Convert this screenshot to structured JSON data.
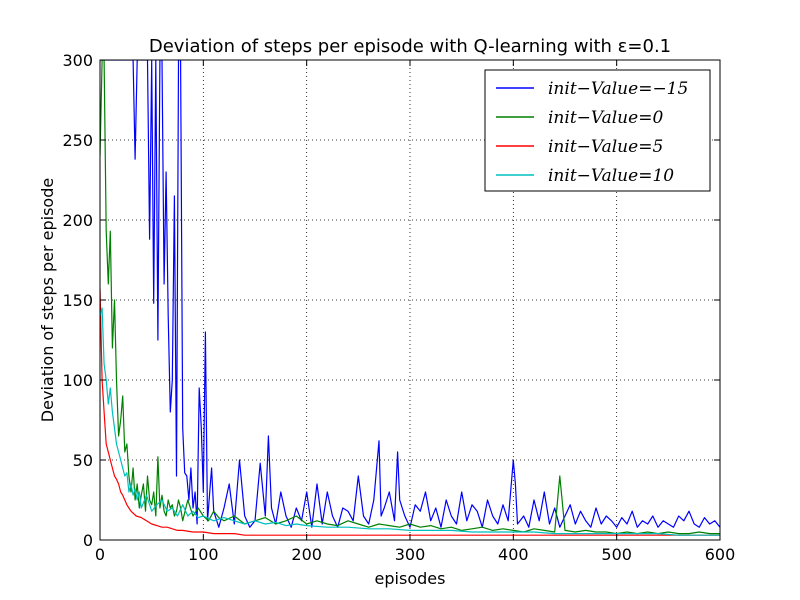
{
  "chart_data": {
    "type": "line",
    "title": "Deviation of steps per episode with Q-learning with ε=0.1",
    "xlabel": "episodes",
    "ylabel": "Deviation of steps per episode",
    "xlim": [
      0,
      600
    ],
    "ylim": [
      0,
      300
    ],
    "xticks": [
      0,
      100,
      200,
      300,
      400,
      500,
      600
    ],
    "yticks": [
      0,
      50,
      100,
      150,
      200,
      250,
      300
    ],
    "grid": true,
    "legend_position": "top-right",
    "series": [
      {
        "name": "init−Value=−15",
        "color": "#0000ff",
        "x": [
          0,
          5,
          10,
          15,
          20,
          25,
          30,
          32,
          34,
          36,
          38,
          40,
          42,
          44,
          46,
          48,
          50,
          52,
          54,
          56,
          58,
          60,
          62,
          64,
          66,
          68,
          70,
          72,
          74,
          76,
          78,
          80,
          82,
          84,
          86,
          88,
          90,
          92,
          94,
          96,
          98,
          100,
          102,
          104,
          106,
          108,
          110,
          115,
          120,
          125,
          130,
          135,
          140,
          145,
          150,
          155,
          160,
          163,
          166,
          170,
          175,
          180,
          185,
          190,
          195,
          200,
          205,
          210,
          215,
          220,
          225,
          230,
          235,
          240,
          245,
          250,
          255,
          260,
          265,
          270,
          272,
          275,
          280,
          285,
          288,
          290,
          295,
          300,
          305,
          310,
          315,
          320,
          325,
          330,
          335,
          340,
          345,
          350,
          355,
          360,
          365,
          370,
          375,
          380,
          385,
          390,
          395,
          400,
          402,
          404,
          410,
          415,
          420,
          425,
          430,
          435,
          440,
          445,
          450,
          455,
          460,
          465,
          470,
          475,
          480,
          485,
          490,
          495,
          500,
          505,
          510,
          515,
          520,
          525,
          530,
          535,
          540,
          545,
          550,
          555,
          560,
          565,
          570,
          575,
          580,
          585,
          590,
          595,
          600
        ],
        "values": [
          300,
          300,
          300,
          300,
          300,
          300,
          300,
          300,
          238,
          300,
          300,
          300,
          300,
          300,
          300,
          188,
          300,
          148,
          300,
          125,
          300,
          300,
          160,
          230,
          140,
          80,
          100,
          215,
          40,
          300,
          300,
          70,
          42,
          40,
          25,
          45,
          20,
          30,
          10,
          95,
          70,
          30,
          130,
          12,
          28,
          45,
          18,
          8,
          20,
          35,
          10,
          50,
          15,
          8,
          12,
          48,
          15,
          65,
          20,
          10,
          30,
          15,
          8,
          20,
          12,
          30,
          8,
          35,
          10,
          30,
          15,
          8,
          20,
          18,
          12,
          40,
          15,
          10,
          25,
          62,
          15,
          20,
          30,
          12,
          55,
          25,
          15,
          8,
          22,
          18,
          30,
          12,
          20,
          8,
          25,
          15,
          10,
          30,
          12,
          22,
          18,
          8,
          25,
          15,
          10,
          22,
          12,
          50,
          35,
          10,
          15,
          8,
          25,
          12,
          30,
          10,
          20,
          8,
          15,
          22,
          10,
          18,
          12,
          8,
          20,
          10,
          15,
          12,
          8,
          14,
          10,
          18,
          8,
          12,
          10,
          15,
          8,
          12,
          10,
          8,
          15,
          12,
          18,
          10,
          8,
          14,
          10,
          12,
          8
        ]
      },
      {
        "name": "init−Value=0",
        "color": "#008000",
        "x": [
          0,
          2,
          4,
          6,
          8,
          10,
          12,
          14,
          16,
          18,
          20,
          22,
          24,
          26,
          28,
          30,
          32,
          34,
          36,
          38,
          40,
          42,
          44,
          46,
          48,
          50,
          52,
          54,
          56,
          58,
          60,
          62,
          64,
          66,
          68,
          70,
          72,
          74,
          76,
          78,
          80,
          85,
          90,
          95,
          100,
          105,
          110,
          115,
          120,
          130,
          140,
          150,
          160,
          170,
          180,
          190,
          200,
          210,
          220,
          230,
          240,
          250,
          260,
          270,
          280,
          290,
          300,
          310,
          320,
          330,
          340,
          350,
          360,
          370,
          380,
          390,
          400,
          410,
          420,
          430,
          440,
          445,
          450,
          460,
          470,
          480,
          490,
          500,
          510,
          520,
          530,
          540,
          550,
          560,
          570,
          580,
          590,
          600
        ],
        "values": [
          240,
          300,
          300,
          193,
          160,
          193,
          120,
          150,
          100,
          65,
          75,
          90,
          55,
          60,
          40,
          30,
          45,
          25,
          35,
          20,
          28,
          35,
          18,
          40,
          25,
          22,
          30,
          15,
          52,
          20,
          28,
          18,
          15,
          25,
          20,
          22,
          15,
          18,
          25,
          20,
          12,
          25,
          15,
          20,
          15,
          12,
          18,
          14,
          12,
          15,
          10,
          12,
          14,
          10,
          12,
          15,
          10,
          12,
          10,
          9,
          12,
          10,
          8,
          10,
          9,
          8,
          10,
          8,
          9,
          7,
          8,
          6,
          7,
          8,
          6,
          7,
          6,
          5,
          7,
          6,
          5,
          40,
          6,
          5,
          6,
          5,
          5,
          4,
          5,
          4,
          5,
          4,
          5,
          4,
          4,
          5,
          4,
          4
        ]
      },
      {
        "name": "init−Value=5",
        "color": "#ff0000",
        "x": [
          0,
          2,
          4,
          6,
          8,
          10,
          12,
          14,
          16,
          18,
          20,
          22,
          24,
          26,
          28,
          30,
          35,
          40,
          45,
          50,
          55,
          60,
          65,
          70,
          75,
          80,
          90,
          100,
          110,
          120,
          130,
          140,
          150,
          160,
          170,
          180,
          190,
          200,
          220,
          240,
          260,
          280,
          300,
          320,
          340,
          360,
          380,
          400,
          420,
          440,
          460,
          480,
          500,
          520,
          540,
          560,
          580,
          600
        ],
        "values": [
          157,
          100,
          80,
          60,
          55,
          50,
          45,
          40,
          38,
          35,
          30,
          28,
          25,
          22,
          20,
          18,
          15,
          14,
          12,
          10,
          9,
          8,
          8,
          7,
          6,
          6,
          5,
          5,
          4,
          4,
          4,
          3,
          3,
          3,
          3,
          3,
          3,
          3,
          3,
          3,
          3,
          3,
          3,
          3,
          3,
          3,
          3,
          3,
          3,
          3,
          3,
          3,
          3,
          3,
          3,
          3,
          3,
          3
        ]
      },
      {
        "name": "init−Value=10",
        "color": "#00bfbf",
        "x": [
          0,
          2,
          4,
          6,
          8,
          10,
          12,
          14,
          16,
          18,
          20,
          22,
          24,
          26,
          28,
          30,
          32,
          34,
          36,
          38,
          40,
          45,
          50,
          55,
          60,
          65,
          70,
          75,
          80,
          85,
          90,
          95,
          100,
          110,
          120,
          130,
          140,
          150,
          160,
          170,
          180,
          190,
          200,
          220,
          240,
          260,
          280,
          300,
          320,
          340,
          360,
          380,
          400,
          420,
          440,
          460,
          480,
          500,
          520,
          540,
          560,
          580,
          600
        ],
        "values": [
          140,
          145,
          110,
          100,
          85,
          95,
          80,
          70,
          60,
          55,
          50,
          45,
          40,
          42,
          30,
          35,
          28,
          32,
          25,
          30,
          20,
          28,
          18,
          22,
          25,
          18,
          20,
          15,
          22,
          15,
          18,
          14,
          15,
          12,
          14,
          12,
          10,
          12,
          10,
          11,
          9,
          10,
          9,
          8,
          8,
          7,
          7,
          6,
          6,
          6,
          5,
          5,
          5,
          5,
          4,
          4,
          4,
          4,
          4,
          4,
          3,
          3,
          3
        ]
      }
    ]
  }
}
